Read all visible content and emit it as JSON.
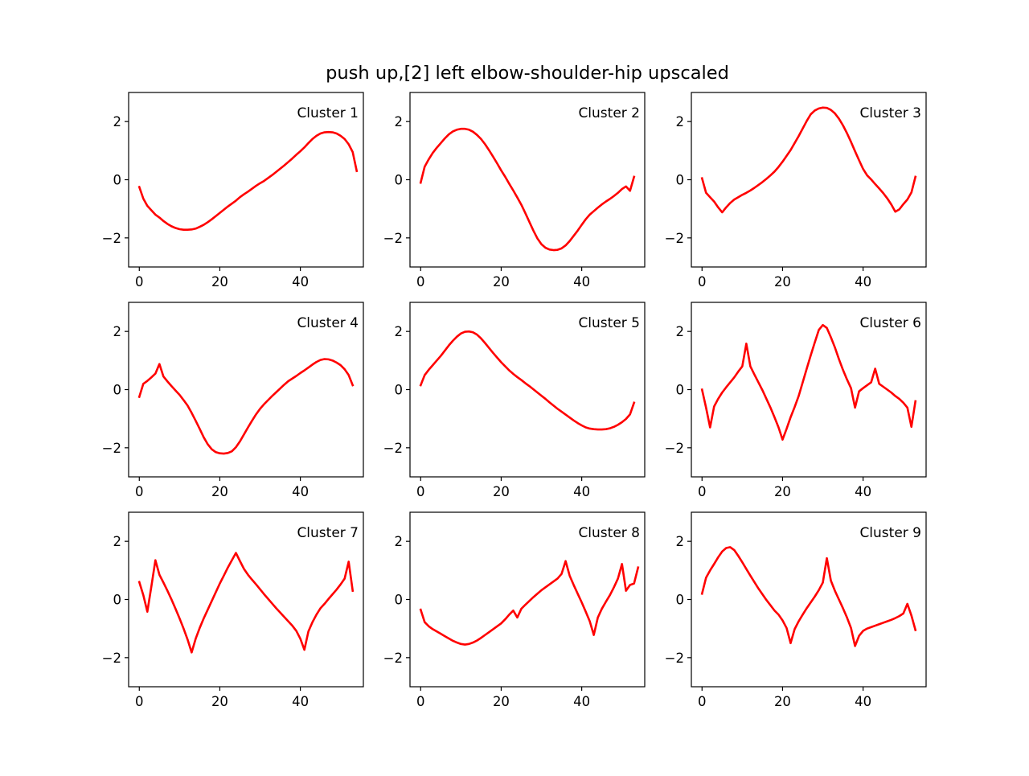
{
  "figure": {
    "title": "push up,[2] left elbow-shoulder-hip upscaled",
    "line_color": "#ff0000",
    "frame_color": "#000000",
    "background": "#ffffff"
  },
  "chart_data": [
    {
      "type": "line",
      "label": "Cluster 1",
      "x_start": 0,
      "x_step": 1,
      "xlim": [
        -2.65,
        55.65
      ],
      "ylim": [
        -3,
        3
      ],
      "xticks": [
        0,
        20,
        40
      ],
      "yticks": [
        -2,
        0,
        2
      ],
      "grid": false,
      "legend": "none",
      "values": [
        -0.25,
        -0.65,
        -0.9,
        -1.05,
        -1.2,
        -1.3,
        -1.42,
        -1.52,
        -1.6,
        -1.66,
        -1.7,
        -1.72,
        -1.72,
        -1.71,
        -1.68,
        -1.62,
        -1.55,
        -1.46,
        -1.36,
        -1.25,
        -1.14,
        -1.03,
        -0.92,
        -0.82,
        -0.72,
        -0.6,
        -0.5,
        -0.41,
        -0.31,
        -0.21,
        -0.12,
        -0.04,
        0.06,
        0.16,
        0.27,
        0.38,
        0.49,
        0.61,
        0.73,
        0.86,
        0.98,
        1.11,
        1.26,
        1.4,
        1.51,
        1.59,
        1.63,
        1.64,
        1.63,
        1.59,
        1.51,
        1.4,
        1.22,
        0.95,
        0.3
      ]
    },
    {
      "type": "line",
      "label": "Cluster 2",
      "x_start": 0,
      "x_step": 1,
      "xlim": [
        -2.65,
        55.65
      ],
      "ylim": [
        -3,
        3
      ],
      "xticks": [
        0,
        20,
        40
      ],
      "yticks": [
        -2,
        0,
        2
      ],
      "grid": false,
      "legend": "none",
      "values": [
        -0.1,
        0.45,
        0.7,
        0.92,
        1.1,
        1.26,
        1.42,
        1.56,
        1.66,
        1.72,
        1.75,
        1.75,
        1.72,
        1.65,
        1.54,
        1.4,
        1.22,
        1.01,
        0.79,
        0.56,
        0.32,
        0.1,
        -0.14,
        -0.37,
        -0.61,
        -0.86,
        -1.15,
        -1.45,
        -1.75,
        -2.02,
        -2.22,
        -2.34,
        -2.4,
        -2.42,
        -2.41,
        -2.36,
        -2.26,
        -2.11,
        -1.93,
        -1.75,
        -1.55,
        -1.36,
        -1.2,
        -1.08,
        -0.96,
        -0.85,
        -0.75,
        -0.66,
        -0.56,
        -0.45,
        -0.32,
        -0.23,
        -0.38,
        0.1
      ]
    },
    {
      "type": "line",
      "label": "Cluster 3",
      "x_start": 0,
      "x_step": 1,
      "xlim": [
        -2.65,
        55.65
      ],
      "ylim": [
        -3,
        3
      ],
      "xticks": [
        0,
        20,
        40
      ],
      "yticks": [
        -2,
        0,
        2
      ],
      "grid": false,
      "legend": "none",
      "values": [
        0.05,
        -0.45,
        -0.6,
        -0.75,
        -0.95,
        -1.12,
        -0.95,
        -0.8,
        -0.68,
        -0.6,
        -0.52,
        -0.45,
        -0.37,
        -0.28,
        -0.18,
        -0.08,
        0.03,
        0.15,
        0.28,
        0.44,
        0.62,
        0.82,
        1.02,
        1.26,
        1.5,
        1.76,
        2.02,
        2.25,
        2.38,
        2.45,
        2.48,
        2.47,
        2.4,
        2.28,
        2.1,
        1.87,
        1.6,
        1.3,
        0.98,
        0.67,
        0.37,
        0.15,
        0.01,
        -0.15,
        -0.3,
        -0.46,
        -0.64,
        -0.85,
        -1.1,
        -1.02,
        -0.84,
        -0.68,
        -0.44,
        0.1
      ]
    },
    {
      "type": "line",
      "label": "Cluster 4",
      "x_start": 0,
      "x_step": 1,
      "xlim": [
        -2.65,
        55.65
      ],
      "ylim": [
        -3,
        3
      ],
      "xticks": [
        0,
        20,
        40
      ],
      "yticks": [
        -2,
        0,
        2
      ],
      "grid": false,
      "legend": "none",
      "values": [
        -0.25,
        0.2,
        0.3,
        0.42,
        0.55,
        0.88,
        0.45,
        0.28,
        0.12,
        -0.03,
        -0.18,
        -0.36,
        -0.55,
        -0.8,
        -1.07,
        -1.35,
        -1.64,
        -1.88,
        -2.05,
        -2.15,
        -2.19,
        -2.2,
        -2.18,
        -2.12,
        -1.98,
        -1.78,
        -1.54,
        -1.3,
        -1.07,
        -0.85,
        -0.66,
        -0.5,
        -0.36,
        -0.22,
        -0.09,
        0.04,
        0.17,
        0.29,
        0.38,
        0.47,
        0.57,
        0.66,
        0.76,
        0.86,
        0.95,
        1.02,
        1.05,
        1.04,
        1.0,
        0.93,
        0.84,
        0.7,
        0.5,
        0.15
      ]
    },
    {
      "type": "line",
      "label": "Cluster 5",
      "x_start": 0,
      "x_step": 1,
      "xlim": [
        -2.65,
        55.65
      ],
      "ylim": [
        -3,
        3
      ],
      "xticks": [
        0,
        20,
        40
      ],
      "yticks": [
        -2,
        0,
        2
      ],
      "grid": false,
      "legend": "none",
      "values": [
        0.15,
        0.5,
        0.68,
        0.84,
        1.0,
        1.16,
        1.34,
        1.52,
        1.68,
        1.82,
        1.93,
        1.99,
        2.0,
        1.97,
        1.89,
        1.76,
        1.6,
        1.43,
        1.26,
        1.1,
        0.94,
        0.8,
        0.66,
        0.54,
        0.43,
        0.33,
        0.22,
        0.12,
        0.01,
        -0.1,
        -0.21,
        -0.32,
        -0.44,
        -0.55,
        -0.66,
        -0.76,
        -0.86,
        -0.96,
        -1.06,
        -1.15,
        -1.23,
        -1.3,
        -1.34,
        -1.36,
        -1.37,
        -1.37,
        -1.36,
        -1.33,
        -1.28,
        -1.21,
        -1.12,
        -1.01,
        -0.85,
        -0.45
      ]
    },
    {
      "type": "line",
      "label": "Cluster 6",
      "x_start": 0,
      "x_step": 1,
      "xlim": [
        -2.65,
        55.65
      ],
      "ylim": [
        -3,
        3
      ],
      "xticks": [
        0,
        20,
        40
      ],
      "yticks": [
        -2,
        0,
        2
      ],
      "grid": false,
      "legend": "none",
      "values": [
        0.0,
        -0.62,
        -1.3,
        -0.58,
        -0.32,
        -0.1,
        0.08,
        0.25,
        0.42,
        0.62,
        0.8,
        1.58,
        0.8,
        0.52,
        0.25,
        -0.02,
        -0.32,
        -0.62,
        -0.95,
        -1.3,
        -1.72,
        -1.35,
        -0.95,
        -0.6,
        -0.22,
        0.25,
        0.72,
        1.18,
        1.62,
        2.05,
        2.22,
        2.12,
        1.8,
        1.45,
        1.05,
        0.68,
        0.35,
        0.05,
        -0.62,
        -0.06,
        0.05,
        0.15,
        0.25,
        0.72,
        0.2,
        0.1,
        0.0,
        -0.1,
        -0.22,
        -0.32,
        -0.45,
        -0.62,
        -1.28,
        -0.4
      ]
    },
    {
      "type": "line",
      "label": "Cluster 7",
      "x_start": 0,
      "x_step": 1,
      "xlim": [
        -2.65,
        55.65
      ],
      "ylim": [
        -3,
        3
      ],
      "xticks": [
        0,
        20,
        40
      ],
      "yticks": [
        -2,
        0,
        2
      ],
      "grid": false,
      "legend": "none",
      "values": [
        0.6,
        0.15,
        -0.42,
        0.45,
        1.35,
        0.85,
        0.58,
        0.3,
        0.0,
        -0.32,
        -0.65,
        -1.0,
        -1.38,
        -1.82,
        -1.35,
        -0.98,
        -0.65,
        -0.35,
        -0.05,
        0.25,
        0.55,
        0.82,
        1.1,
        1.35,
        1.6,
        1.32,
        1.05,
        0.85,
        0.68,
        0.52,
        0.35,
        0.18,
        0.02,
        -0.14,
        -0.3,
        -0.45,
        -0.6,
        -0.75,
        -0.9,
        -1.08,
        -1.35,
        -1.73,
        -1.1,
        -0.78,
        -0.52,
        -0.3,
        -0.15,
        0.02,
        0.18,
        0.34,
        0.52,
        0.72,
        1.3,
        0.3
      ]
    },
    {
      "type": "line",
      "label": "Cluster 8",
      "x_start": 0,
      "x_step": 1,
      "xlim": [
        -2.65,
        55.65
      ],
      "ylim": [
        -3,
        3
      ],
      "xticks": [
        0,
        20,
        40
      ],
      "yticks": [
        -2,
        0,
        2
      ],
      "grid": false,
      "legend": "none",
      "values": [
        -0.35,
        -0.78,
        -0.92,
        -1.02,
        -1.1,
        -1.18,
        -1.26,
        -1.34,
        -1.42,
        -1.48,
        -1.53,
        -1.55,
        -1.53,
        -1.48,
        -1.41,
        -1.32,
        -1.22,
        -1.12,
        -1.02,
        -0.92,
        -0.82,
        -0.68,
        -0.52,
        -0.38,
        -0.62,
        -0.32,
        -0.18,
        -0.05,
        0.08,
        0.2,
        0.32,
        0.42,
        0.52,
        0.62,
        0.72,
        0.88,
        1.32,
        0.82,
        0.5,
        0.2,
        -0.1,
        -0.42,
        -0.75,
        -1.22,
        -0.62,
        -0.32,
        -0.08,
        0.15,
        0.42,
        0.72,
        1.22,
        0.3,
        0.5,
        0.55,
        1.1
      ]
    },
    {
      "type": "line",
      "label": "Cluster 9",
      "x_start": 0,
      "x_step": 1,
      "xlim": [
        -2.65,
        55.65
      ],
      "ylim": [
        -3,
        3
      ],
      "xticks": [
        0,
        20,
        40
      ],
      "yticks": [
        -2,
        0,
        2
      ],
      "grid": false,
      "legend": "none",
      "values": [
        0.2,
        0.75,
        1.0,
        1.22,
        1.45,
        1.65,
        1.77,
        1.8,
        1.7,
        1.5,
        1.28,
        1.05,
        0.82,
        0.6,
        0.38,
        0.18,
        -0.02,
        -0.2,
        -0.38,
        -0.52,
        -0.72,
        -0.98,
        -1.5,
        -1.02,
        -0.75,
        -0.52,
        -0.3,
        -0.1,
        0.1,
        0.32,
        0.58,
        1.42,
        0.65,
        0.3,
        0.0,
        -0.3,
        -0.62,
        -0.98,
        -1.6,
        -1.25,
        -1.08,
        -1.0,
        -0.95,
        -0.9,
        -0.85,
        -0.8,
        -0.75,
        -0.7,
        -0.64,
        -0.57,
        -0.48,
        -0.15,
        -0.55,
        -1.05
      ]
    }
  ]
}
